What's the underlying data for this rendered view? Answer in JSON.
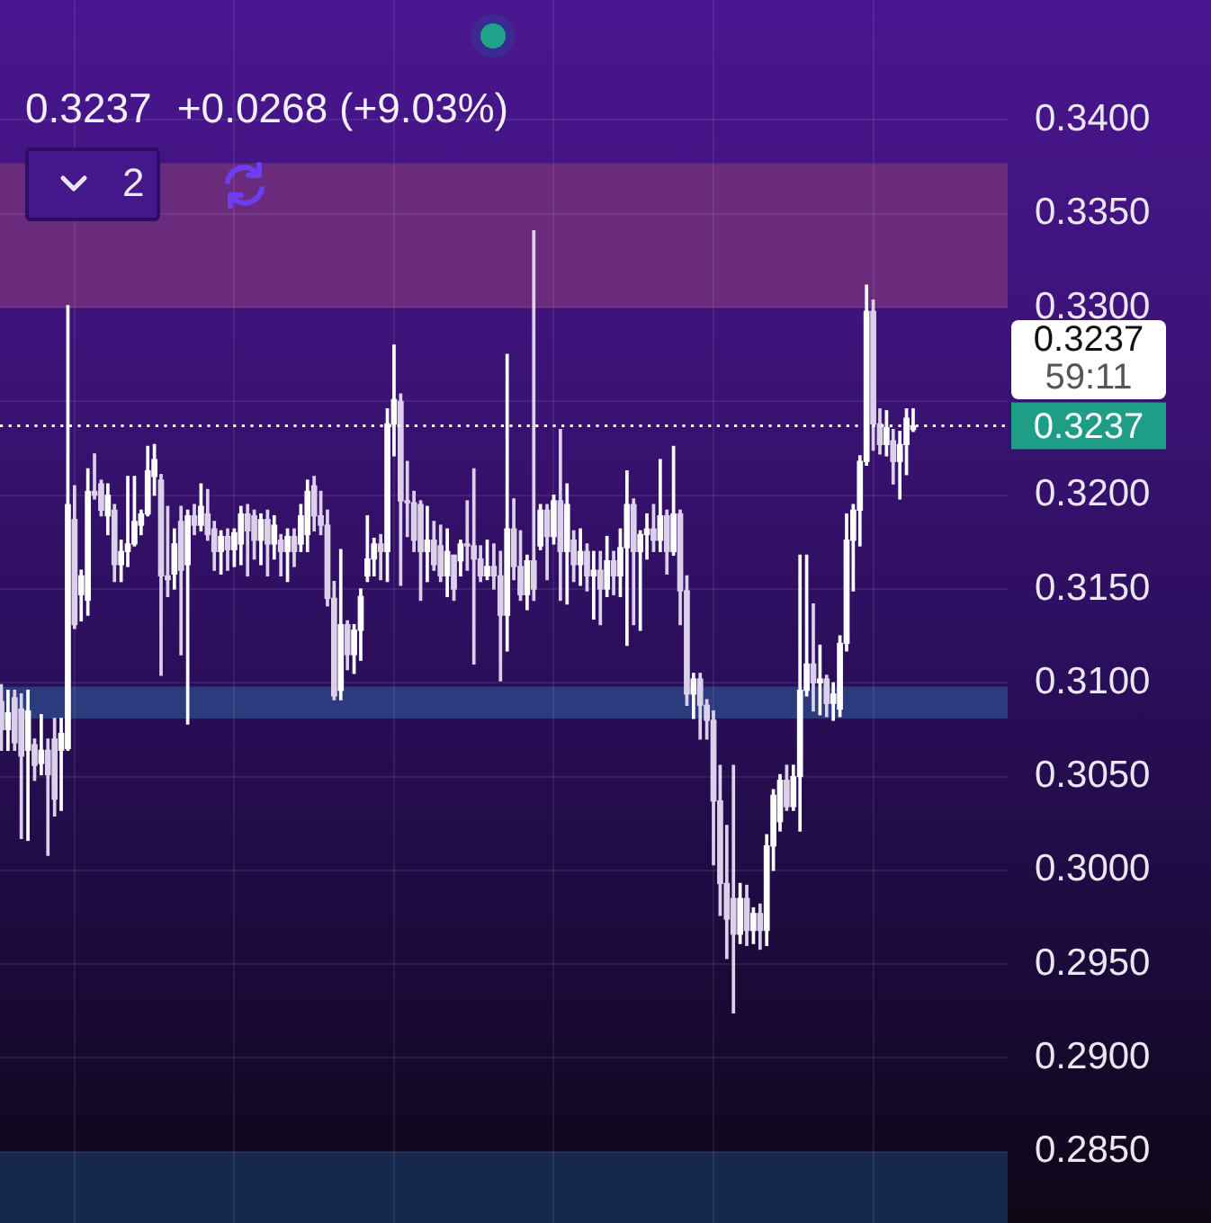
{
  "chart_data": {
    "type": "candlestick",
    "categories": [
      null,
      null,
      null,
      null,
      null,
      null,
      null,
      null,
      null,
      null,
      null,
      null,
      null,
      null,
      null,
      null,
      null,
      null,
      null,
      null,
      null,
      null,
      null,
      null,
      null,
      null,
      null,
      null,
      null,
      null,
      null,
      null,
      null,
      null,
      null,
      null,
      null,
      null,
      null,
      null,
      null,
      null,
      null,
      null,
      null,
      null,
      null,
      null,
      null,
      null,
      null,
      null,
      null,
      null,
      null,
      null,
      null,
      null,
      null,
      null,
      null,
      null,
      null,
      null,
      null,
      null,
      null,
      null,
      null,
      null,
      null,
      null,
      null,
      null,
      null,
      null,
      null,
      null,
      null,
      null,
      null,
      null,
      null,
      null,
      null,
      null,
      null,
      null,
      null,
      null,
      null,
      null,
      null,
      null,
      null,
      null,
      null,
      null,
      null,
      null,
      null,
      null,
      null,
      null,
      null,
      null,
      null,
      null,
      null,
      null,
      null,
      null,
      null,
      null,
      null,
      null,
      null,
      null,
      null,
      null,
      null,
      null,
      null,
      null,
      null,
      null,
      null,
      null,
      null,
      null,
      null,
      null,
      null,
      null,
      null,
      null,
      null,
      null
    ],
    "ohlc": [
      [
        0.309,
        0.3099,
        0.3064,
        0.3075
      ],
      [
        0.3075,
        0.3096,
        0.3064,
        0.3084
      ],
      [
        0.3092,
        0.3096,
        0.3064,
        0.3068
      ],
      [
        0.3086,
        0.3094,
        0.3017,
        0.3061
      ],
      [
        0.3064,
        0.3096,
        0.3016,
        0.3085
      ],
      [
        0.3067,
        0.307,
        0.3048,
        0.3056
      ],
      [
        0.3057,
        0.3083,
        0.3051,
        0.3064
      ],
      [
        0.3064,
        0.307,
        0.3008,
        0.3051
      ],
      [
        0.307,
        0.3081,
        0.3029,
        0.3038
      ],
      [
        0.3064,
        0.3081,
        0.3032,
        0.3073
      ],
      [
        0.3065,
        0.3301,
        0.3064,
        0.3195
      ],
      [
        0.3187,
        0.3205,
        0.3129,
        0.3131
      ],
      [
        0.3147,
        0.316,
        0.3133,
        0.3157
      ],
      [
        0.3144,
        0.3214,
        0.3136,
        0.3202
      ],
      [
        0.3202,
        0.3222,
        0.3198,
        0.32
      ],
      [
        0.3206,
        0.3208,
        0.3189,
        0.3192
      ],
      [
        0.3189,
        0.3206,
        0.3179,
        0.32
      ],
      [
        0.3192,
        0.3195,
        0.3154,
        0.3163
      ],
      [
        0.3163,
        0.3176,
        0.3154,
        0.317
      ],
      [
        0.317,
        0.321,
        0.3162,
        0.3174
      ],
      [
        0.3174,
        0.321,
        0.3173,
        0.3186
      ],
      [
        0.3184,
        0.3192,
        0.3179,
        0.319
      ],
      [
        0.319,
        0.3226,
        0.3189,
        0.3213
      ],
      [
        0.321,
        0.3227,
        0.32,
        0.3219
      ],
      [
        0.3208,
        0.3211,
        0.3104,
        0.3157
      ],
      [
        0.3157,
        0.3194,
        0.3146,
        0.3155
      ],
      [
        0.3158,
        0.3182,
        0.315,
        0.3174
      ],
      [
        0.3186,
        0.3194,
        0.3115,
        0.316
      ],
      [
        0.3163,
        0.3192,
        0.3078,
        0.3189
      ],
      [
        0.3189,
        0.3195,
        0.3179,
        0.3184
      ],
      [
        0.3184,
        0.3206,
        0.3181,
        0.3194
      ],
      [
        0.319,
        0.3203,
        0.3176,
        0.3179
      ],
      [
        0.3182,
        0.3186,
        0.316,
        0.317
      ],
      [
        0.317,
        0.3181,
        0.3158,
        0.3178
      ],
      [
        0.3178,
        0.3182,
        0.316,
        0.3171
      ],
      [
        0.3171,
        0.3182,
        0.3162,
        0.318
      ],
      [
        0.3174,
        0.3194,
        0.3163,
        0.319
      ],
      [
        0.319,
        0.3195,
        0.3157,
        0.3181
      ],
      [
        0.3189,
        0.3192,
        0.3166,
        0.3176
      ],
      [
        0.3176,
        0.319,
        0.3163,
        0.3187
      ],
      [
        0.3187,
        0.3192,
        0.3157,
        0.3174
      ],
      [
        0.3174,
        0.3189,
        0.3166,
        0.3184
      ],
      [
        0.3176,
        0.3179,
        0.3157,
        0.317
      ],
      [
        0.317,
        0.3182,
        0.3154,
        0.3178
      ],
      [
        0.3178,
        0.3182,
        0.3162,
        0.317
      ],
      [
        0.3174,
        0.3195,
        0.317,
        0.3189
      ],
      [
        0.3179,
        0.3208,
        0.317,
        0.3202
      ],
      [
        0.3205,
        0.321,
        0.3181,
        0.3189
      ],
      [
        0.3189,
        0.3202,
        0.3179,
        0.3184
      ],
      [
        0.3184,
        0.3192,
        0.3141,
        0.3145
      ],
      [
        0.3145,
        0.3154,
        0.3091,
        0.3093
      ],
      [
        0.3096,
        0.3171,
        0.3091,
        0.3131
      ],
      [
        0.3131,
        0.3133,
        0.3107,
        0.3115
      ],
      [
        0.3115,
        0.3131,
        0.3105,
        0.3128
      ],
      [
        0.3128,
        0.315,
        0.3112,
        0.3146
      ],
      [
        0.3157,
        0.3189,
        0.3154,
        0.3166
      ],
      [
        0.3166,
        0.3177,
        0.3157,
        0.3174
      ],
      [
        0.3174,
        0.3179,
        0.3155,
        0.317
      ],
      [
        0.317,
        0.3246,
        0.3154,
        0.3238
      ],
      [
        0.3238,
        0.328,
        0.3221,
        0.3251
      ],
      [
        0.325,
        0.3254,
        0.3152,
        0.3197
      ],
      [
        0.3197,
        0.3218,
        0.3178,
        0.3196
      ],
      [
        0.3196,
        0.3202,
        0.317,
        0.3176
      ],
      [
        0.3195,
        0.3197,
        0.3144,
        0.317
      ],
      [
        0.317,
        0.3194,
        0.3154,
        0.3176
      ],
      [
        0.3176,
        0.3186,
        0.316,
        0.3163
      ],
      [
        0.3173,
        0.3184,
        0.3154,
        0.3157
      ],
      [
        0.3157,
        0.3182,
        0.3146,
        0.317
      ],
      [
        0.3168,
        0.3168,
        0.3144,
        0.315
      ],
      [
        0.3165,
        0.3176,
        0.3157,
        0.3174
      ],
      [
        0.3174,
        0.3197,
        0.316,
        0.3173
      ],
      [
        0.3173,
        0.3214,
        0.311,
        0.3166
      ],
      [
        0.3166,
        0.3173,
        0.3154,
        0.3157
      ],
      [
        0.3157,
        0.3176,
        0.3155,
        0.3162
      ],
      [
        0.3162,
        0.3174,
        0.315,
        0.3157
      ],
      [
        0.3157,
        0.317,
        0.3101,
        0.3136
      ],
      [
        0.3136,
        0.3275,
        0.3117,
        0.3182
      ],
      [
        0.3182,
        0.3198,
        0.3155,
        0.3162
      ],
      [
        0.3162,
        0.3181,
        0.3144,
        0.3147
      ],
      [
        0.3147,
        0.3168,
        0.3139,
        0.3165
      ],
      [
        0.3165,
        0.3341,
        0.3144,
        0.315
      ],
      [
        0.3173,
        0.3195,
        0.3171,
        0.3192
      ],
      [
        0.3192,
        0.3195,
        0.3155,
        0.3178
      ],
      [
        0.3178,
        0.32,
        0.3174,
        0.3197
      ],
      [
        0.3197,
        0.3235,
        0.3144,
        0.317
      ],
      [
        0.317,
        0.3206,
        0.3142,
        0.3195
      ],
      [
        0.3176,
        0.3181,
        0.3154,
        0.3163
      ],
      [
        0.3163,
        0.3182,
        0.3152,
        0.317
      ],
      [
        0.317,
        0.3174,
        0.3149,
        0.3157
      ],
      [
        0.3157,
        0.317,
        0.3134,
        0.316
      ],
      [
        0.316,
        0.317,
        0.3131,
        0.315
      ],
      [
        0.315,
        0.3178,
        0.3146,
        0.3165
      ],
      [
        0.3165,
        0.317,
        0.3147,
        0.3157
      ],
      [
        0.3157,
        0.3182,
        0.3146,
        0.3172
      ],
      [
        0.3172,
        0.3213,
        0.312,
        0.3195
      ],
      [
        0.3195,
        0.3198,
        0.3131,
        0.317
      ],
      [
        0.317,
        0.3181,
        0.3128,
        0.3179
      ],
      [
        0.3179,
        0.319,
        0.3166,
        0.3182
      ],
      [
        0.3182,
        0.3195,
        0.317,
        0.3176
      ],
      [
        0.3176,
        0.3219,
        0.317,
        0.3189
      ],
      [
        0.3189,
        0.3192,
        0.3158,
        0.317
      ],
      [
        0.317,
        0.3226,
        0.3168,
        0.319
      ],
      [
        0.319,
        0.3192,
        0.3131,
        0.3149
      ],
      [
        0.3149,
        0.3157,
        0.3088,
        0.3094
      ],
      [
        0.3094,
        0.3105,
        0.3081,
        0.3102
      ],
      [
        0.3102,
        0.3105,
        0.307,
        0.3088
      ],
      [
        0.3088,
        0.3091,
        0.307,
        0.308
      ],
      [
        0.308,
        0.3085,
        0.3003,
        0.3037
      ],
      [
        0.3037,
        0.3056,
        0.2976,
        0.2993
      ],
      [
        0.2993,
        0.3024,
        0.2953,
        0.2974
      ],
      [
        0.2985,
        0.3056,
        0.2924,
        0.2966
      ],
      [
        0.2966,
        0.2993,
        0.2961,
        0.2985
      ],
      [
        0.2985,
        0.2992,
        0.296,
        0.2968
      ],
      [
        0.2968,
        0.298,
        0.2961,
        0.2977
      ],
      [
        0.2977,
        0.2982,
        0.2958,
        0.2968
      ],
      [
        0.2968,
        0.3019,
        0.296,
        0.3013
      ],
      [
        0.3013,
        0.3043,
        0.3,
        0.304
      ],
      [
        0.3026,
        0.3051,
        0.3021,
        0.3048
      ],
      [
        0.3048,
        0.3056,
        0.3032,
        0.3034
      ],
      [
        0.3034,
        0.3056,
        0.3032,
        0.305
      ],
      [
        0.305,
        0.3168,
        0.3021,
        0.3096
      ],
      [
        0.3096,
        0.3168,
        0.3093,
        0.311
      ],
      [
        0.311,
        0.3142,
        0.3085,
        0.31
      ],
      [
        0.31,
        0.312,
        0.3083,
        0.3102
      ],
      [
        0.3102,
        0.3104,
        0.3082,
        0.3089
      ],
      [
        0.3089,
        0.31,
        0.308,
        0.3094
      ],
      [
        0.3086,
        0.3125,
        0.3082,
        0.3121
      ],
      [
        0.3121,
        0.319,
        0.3117,
        0.3176
      ],
      [
        0.3176,
        0.3195,
        0.3149,
        0.3192
      ],
      [
        0.3192,
        0.3221,
        0.3173,
        0.3218
      ],
      [
        0.3218,
        0.3312,
        0.3216,
        0.3298
      ],
      [
        0.3298,
        0.3304,
        0.3224,
        0.3238
      ],
      [
        0.3238,
        0.3246,
        0.3222,
        0.3227
      ],
      [
        0.3227,
        0.3245,
        0.3221,
        0.3236
      ],
      [
        0.3229,
        0.3235,
        0.3206,
        0.3218
      ],
      [
        0.3218,
        0.3234,
        0.3198,
        0.3227
      ],
      [
        0.3227,
        0.3246,
        0.3211,
        0.3241
      ],
      [
        0.3235,
        0.3246,
        0.3234,
        0.3237
      ]
    ],
    "colors": [
      "#dcd0ea",
      "#ffffff",
      "#dcd0ea",
      "#dcd0ea",
      "#ffffff",
      "#dcd0ea",
      "#ffffff",
      "#dcd0ea",
      "#dcd0ea",
      "#ffffff",
      "#ffffff",
      "#dcd0ea",
      "#ffffff",
      "#ffffff",
      "#dcd0ea",
      "#dcd0ea",
      "#ffffff",
      "#dcd0ea",
      "#ffffff",
      "#ffffff",
      "#ffffff",
      "#ffffff",
      "#ffffff",
      "#ffffff",
      "#dcd0ea",
      "#dcd0ea",
      "#ffffff",
      "#dcd0ea",
      "#ffffff",
      "#dcd0ea",
      "#ffffff",
      "#dcd0ea",
      "#dcd0ea",
      "#ffffff",
      "#dcd0ea",
      "#ffffff",
      "#ffffff",
      "#dcd0ea",
      "#dcd0ea",
      "#ffffff",
      "#dcd0ea",
      "#ffffff",
      "#dcd0ea",
      "#ffffff",
      "#dcd0ea",
      "#ffffff",
      "#ffffff",
      "#dcd0ea",
      "#dcd0ea",
      "#dcd0ea",
      "#dcd0ea",
      "#ffffff",
      "#dcd0ea",
      "#ffffff",
      "#ffffff",
      "#ffffff",
      "#ffffff",
      "#dcd0ea",
      "#ffffff",
      "#ffffff",
      "#dcd0ea",
      "#dcd0ea",
      "#dcd0ea",
      "#dcd0ea",
      "#ffffff",
      "#dcd0ea",
      "#dcd0ea",
      "#ffffff",
      "#dcd0ea",
      "#ffffff",
      "#dcd0ea",
      "#dcd0ea",
      "#dcd0ea",
      "#ffffff",
      "#dcd0ea",
      "#dcd0ea",
      "#ffffff",
      "#dcd0ea",
      "#dcd0ea",
      "#ffffff",
      "#dcd0ea",
      "#ffffff",
      "#dcd0ea",
      "#ffffff",
      "#dcd0ea",
      "#ffffff",
      "#dcd0ea",
      "#ffffff",
      "#dcd0ea",
      "#ffffff",
      "#dcd0ea",
      "#ffffff",
      "#dcd0ea",
      "#ffffff",
      "#ffffff",
      "#dcd0ea",
      "#ffffff",
      "#ffffff",
      "#dcd0ea",
      "#ffffff",
      "#dcd0ea",
      "#ffffff",
      "#dcd0ea",
      "#dcd0ea",
      "#ffffff",
      "#dcd0ea",
      "#dcd0ea",
      "#dcd0ea",
      "#dcd0ea",
      "#dcd0ea",
      "#dcd0ea",
      "#ffffff",
      "#dcd0ea",
      "#ffffff",
      "#dcd0ea",
      "#ffffff",
      "#ffffff",
      "#ffffff",
      "#dcd0ea",
      "#ffffff",
      "#ffffff",
      "#ffffff",
      "#dcd0ea",
      "#ffffff",
      "#dcd0ea",
      "#ffffff",
      "#ffffff",
      "#ffffff",
      "#ffffff",
      "#ffffff",
      "#ffffff",
      "#dcd0ea",
      "#dcd0ea",
      "#ffffff",
      "#dcd0ea",
      "#ffffff",
      "#ffffff",
      "#ffffff"
    ],
    "ylim": [
      0.2812,
      0.3464
    ],
    "yticks": [
      {
        "value": 0.285,
        "label": "0.2850"
      },
      {
        "value": 0.29,
        "label": "0.2900"
      },
      {
        "value": 0.295,
        "label": "0.2950"
      },
      {
        "value": 0.3,
        "label": "0.3000"
      },
      {
        "value": 0.305,
        "label": "0.3050"
      },
      {
        "value": 0.31,
        "label": "0.3100"
      },
      {
        "value": 0.315,
        "label": "0.3150"
      },
      {
        "value": 0.32,
        "label": "0.3200"
      },
      {
        "value": 0.325,
        "label": null
      },
      {
        "value": 0.33,
        "label": "0.3300"
      },
      {
        "value": 0.335,
        "label": "0.3350"
      },
      {
        "value": 0.34,
        "label": "0.3400"
      }
    ],
    "grid": true,
    "tick_labels": "y",
    "bands": [
      {
        "axis": "y",
        "from": 0.33,
        "to": 0.3377,
        "color": "#6a2b7c"
      },
      {
        "axis": "y",
        "from": 0.3081,
        "to": 0.3098,
        "color": "#2c3b7e"
      },
      {
        "axis": "y",
        "from": 0.2812,
        "to": 0.285,
        "color": "#16284c"
      }
    ],
    "ref_lines": [
      {
        "axis": "y",
        "value": 0.3237,
        "label": "0.3237",
        "color": "#ffffff",
        "line_style": "dotted"
      }
    ],
    "annotations": [
      "0.3237",
      "+0.0268 (+9.03%)",
      "2",
      "0.3237",
      "59:11"
    ]
  }
}
